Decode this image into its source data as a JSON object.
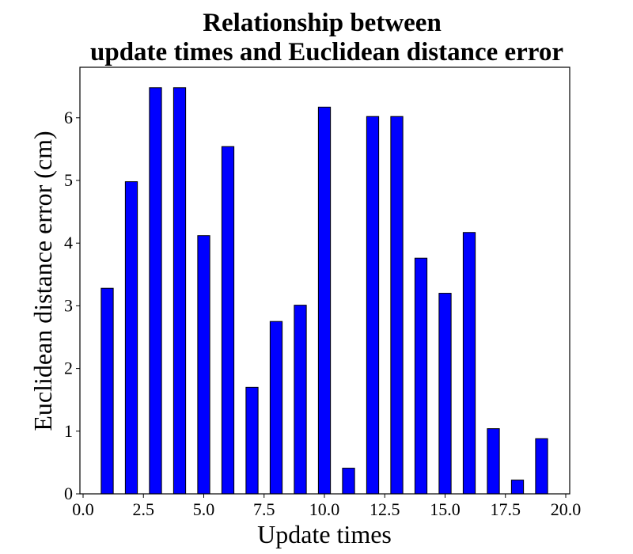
{
  "chart_data": {
    "type": "bar",
    "title": [
      "Relationship between",
      "update times and Euclidean distance error"
    ],
    "xlabel": "Update times",
    "ylabel": "Euclidean distance error (cm)",
    "xlim": [
      0,
      20
    ],
    "ylim": [
      0,
      6.8
    ],
    "xticks": [
      0.0,
      2.5,
      5.0,
      7.5,
      10.0,
      12.5,
      15.0,
      17.5,
      20.0
    ],
    "xtick_labels": [
      "0.0",
      "2.5",
      "5.0",
      "7.5",
      "10.0",
      "12.5",
      "15.0",
      "17.5",
      "20.0"
    ],
    "yticks": [
      0,
      1,
      2,
      3,
      4,
      5,
      6
    ],
    "ytick_labels": [
      "0",
      "1",
      "2",
      "3",
      "4",
      "5",
      "6"
    ],
    "bar_width": 0.5,
    "x": [
      1,
      2,
      3,
      4,
      5,
      6,
      7,
      8,
      9,
      10,
      11,
      12,
      13,
      14,
      15,
      16,
      17,
      18,
      19
    ],
    "values": [
      3.28,
      4.98,
      6.48,
      6.48,
      4.12,
      5.54,
      1.7,
      2.75,
      3.01,
      6.17,
      0.41,
      6.02,
      6.02,
      3.76,
      3.2,
      4.17,
      1.04,
      0.22,
      0.88
    ],
    "bar_color": "#0000ff",
    "edge_color": "#000000",
    "grid": false,
    "legend": "none"
  }
}
